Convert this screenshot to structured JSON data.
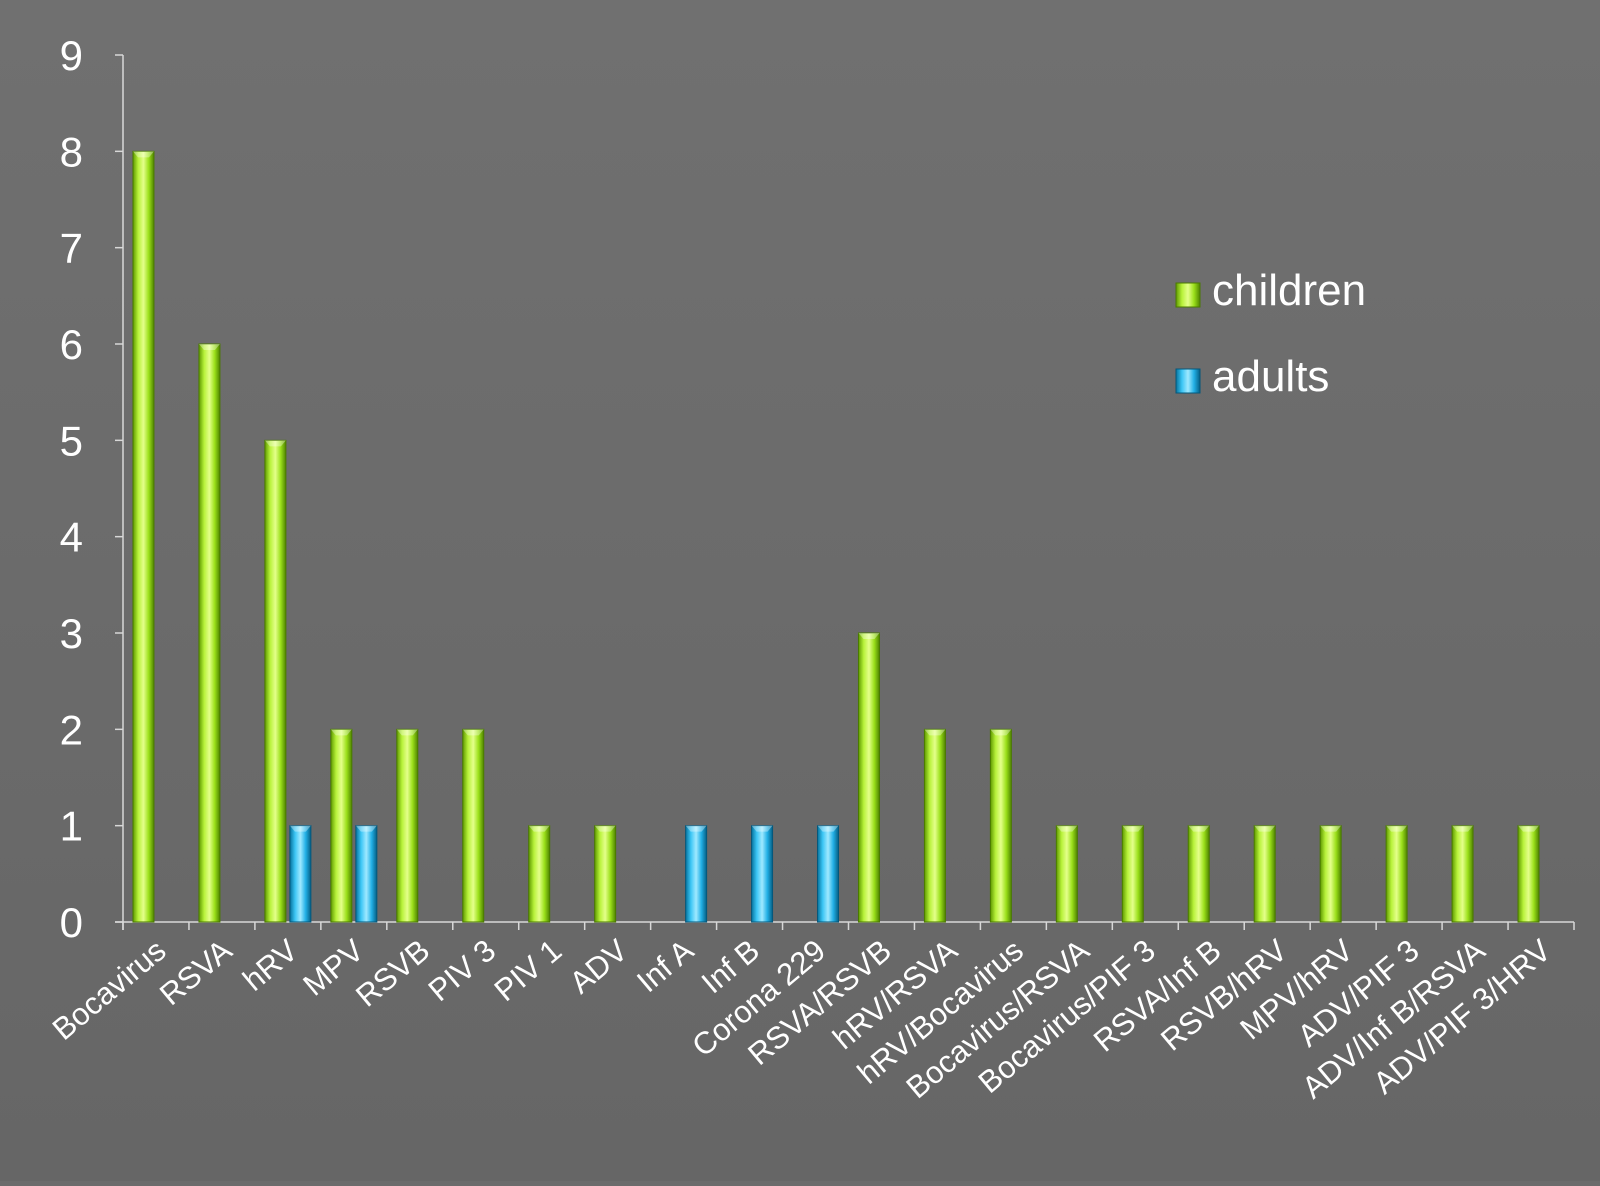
{
  "chart_data": {
    "type": "bar",
    "title": "",
    "xlabel": "",
    "ylabel": "",
    "ylim": [
      0,
      9
    ],
    "yticks": [
      0,
      1,
      2,
      3,
      4,
      5,
      6,
      7,
      8,
      9
    ],
    "grid": false,
    "legend_position": "top-right",
    "categories": [
      "Bocavirus",
      "RSVA",
      "hRV",
      "MPV",
      "RSVB",
      "PIV 3",
      "PIV 1",
      "ADV",
      "Inf A",
      "Inf B",
      "Corona 229",
      "RSVA/RSVB",
      "hRV/RSVA",
      "hRV/Bocavirus",
      "Bocavirus/RSVA",
      "Bocavirus/PIF 3",
      "RSVA/Inf B",
      "RSVB/hRV",
      "MPV/hRV",
      "ADV/PIF 3",
      "ADV/Inf B/RSVA",
      "ADV/PIF 3/HRV"
    ],
    "series": [
      {
        "name": "children",
        "color": "#8fd400",
        "values": [
          8,
          6,
          5,
          2,
          2,
          2,
          1,
          1,
          0,
          0,
          0,
          3,
          2,
          2,
          1,
          1,
          1,
          1,
          1,
          1,
          1,
          1
        ]
      },
      {
        "name": "adults",
        "color": "#1aa7e0",
        "values": [
          0,
          0,
          1,
          1,
          0,
          0,
          0,
          0,
          1,
          1,
          1,
          0,
          0,
          0,
          0,
          0,
          0,
          0,
          0,
          0,
          0,
          0
        ]
      }
    ]
  }
}
